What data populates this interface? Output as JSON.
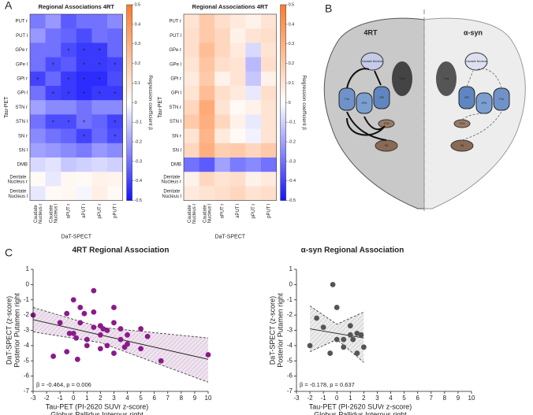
{
  "panels": [
    "A",
    "B",
    "C"
  ],
  "diagram": {
    "left_title": "4RT",
    "right_title": "α-syn",
    "structures": [
      "Caudate Nucleus",
      "Put",
      "GPe",
      "GPi",
      "STN",
      "SN",
      "Thal"
    ]
  },
  "chart_data": [
    {
      "type": "heatmap",
      "title": "Regional Associations 4RT",
      "xlabel": "DaT-SPECT",
      "ylabel": "Tau-PET",
      "colorbar_label": "Regression coefficient β",
      "x_categories": [
        "Caudate Nucleus r",
        "Caudate Nucleus l",
        "aPUT r",
        "aPUT l",
        "pPUT r",
        "pPUT l"
      ],
      "y_categories": [
        "PUT r",
        "PUT l",
        "GPe r",
        "GPe l",
        "GPi r",
        "GPi l",
        "STN r",
        "STN l",
        "SN r",
        "SN l",
        "DMB",
        "Dentate Nucleus r",
        "Dentate Nucleus l"
      ],
      "values": [
        [
          -0.28,
          -0.22,
          -0.35,
          -0.3,
          -0.3,
          -0.25
        ],
        [
          -0.22,
          -0.3,
          -0.33,
          -0.38,
          -0.3,
          -0.32
        ],
        [
          -0.3,
          -0.3,
          -0.38,
          -0.42,
          -0.42,
          -0.32
        ],
        [
          -0.3,
          -0.38,
          -0.35,
          -0.42,
          -0.42,
          -0.4
        ],
        [
          -0.4,
          -0.32,
          -0.42,
          -0.45,
          -0.45,
          -0.38
        ],
        [
          -0.3,
          -0.4,
          -0.42,
          -0.45,
          -0.42,
          -0.42
        ],
        [
          -0.2,
          -0.25,
          -0.25,
          -0.3,
          -0.25,
          -0.25
        ],
        [
          -0.3,
          -0.38,
          -0.38,
          -0.3,
          -0.33,
          -0.4
        ],
        [
          -0.25,
          -0.3,
          -0.33,
          -0.4,
          -0.32,
          -0.38
        ],
        [
          -0.2,
          -0.22,
          -0.25,
          -0.28,
          -0.22,
          -0.25
        ],
        [
          -0.08,
          -0.06,
          -0.12,
          -0.1,
          -0.08,
          -0.1
        ],
        [
          0.02,
          -0.05,
          0.03,
          0.02,
          0.05,
          0.04
        ],
        [
          -0.05,
          0.02,
          0.03,
          -0.02,
          0.06,
          0.02
        ]
      ],
      "significance_label": "*",
      "significant": [
        [
          2,
          2
        ],
        [
          2,
          3
        ],
        [
          2,
          4
        ],
        [
          3,
          1
        ],
        [
          3,
          3
        ],
        [
          3,
          4
        ],
        [
          3,
          5
        ],
        [
          4,
          0
        ],
        [
          4,
          2
        ],
        [
          4,
          3
        ],
        [
          4,
          4
        ],
        [
          5,
          1
        ],
        [
          5,
          2
        ],
        [
          5,
          3
        ],
        [
          5,
          4
        ],
        [
          5,
          5
        ],
        [
          7,
          1
        ],
        [
          7,
          2
        ],
        [
          7,
          3
        ],
        [
          7,
          5
        ],
        [
          8,
          3
        ],
        [
          8,
          5
        ]
      ],
      "clim": [
        -0.5,
        0.5
      ],
      "cticks": [
        0.5,
        0.4,
        0.3,
        0.2,
        0.1,
        0,
        -0.1,
        -0.2,
        -0.3,
        -0.4,
        -0.5
      ],
      "colormap": [
        "#1414ff",
        "#ffffff",
        "#ff7a2a"
      ]
    },
    {
      "type": "heatmap",
      "title": "Regional Associations 4RT",
      "xlabel": "DaT-SPECT",
      "ylabel": "Tau-PET",
      "colorbar_label": "Regression coefficient β",
      "x_categories": [
        "Caudate Nucleus r",
        "Caudate Nucleus l",
        "aPUT r",
        "aPUT l",
        "pPUT r",
        "pPUT l"
      ],
      "y_categories": [
        "PUT r",
        "PUT l",
        "GPe r",
        "GPe l",
        "GPi r",
        "GPi l",
        "STN r",
        "STN l",
        "SN r",
        "SN l",
        "DMB",
        "Dentate Nucleus r",
        "Dentate Nucleus l"
      ],
      "values": [
        [
          0.1,
          0.2,
          0.12,
          0.08,
          0.05,
          0.1
        ],
        [
          0.12,
          0.2,
          0.15,
          0.05,
          0.1,
          0.12
        ],
        [
          0.12,
          0.25,
          0.15,
          0.08,
          -0.08,
          0.1
        ],
        [
          0.1,
          0.22,
          0.12,
          0.1,
          -0.15,
          0.12
        ],
        [
          0.08,
          0.2,
          0.05,
          0.1,
          -0.12,
          0.05
        ],
        [
          0.1,
          0.25,
          0.12,
          0.08,
          -0.05,
          0.12
        ],
        [
          0.15,
          0.32,
          0.1,
          0.02,
          0.05,
          0.1
        ],
        [
          0.2,
          0.3,
          0.15,
          0.05,
          -0.05,
          0.1
        ],
        [
          0.1,
          0.28,
          0.08,
          0.02,
          -0.03,
          0.1
        ],
        [
          0.15,
          0.3,
          0.18,
          0.2,
          0.15,
          0.2
        ],
        [
          -0.3,
          -0.35,
          -0.2,
          -0.28,
          -0.25,
          -0.3
        ],
        [
          0.05,
          0.15,
          0.1,
          0.12,
          0.05,
          0.08
        ],
        [
          0.08,
          0.1,
          0.12,
          0.15,
          0.1,
          0.12
        ]
      ],
      "clim": [
        -0.5,
        0.5
      ],
      "cticks": [
        0.5,
        0.4,
        0.3,
        0.2,
        0.1,
        0,
        -0.1,
        -0.2,
        -0.3,
        -0.4,
        -0.5
      ],
      "colormap": [
        "#1414ff",
        "#ffffff",
        "#ff7a2a"
      ]
    },
    {
      "type": "scatter",
      "title": "4RT Regional Association",
      "xlabel": [
        "Tau-PET (PI-2620 SUVr z-score)",
        "Globus Pallidus Internus right"
      ],
      "ylabel": [
        "DaT-SPECT (z-score)",
        "Posterior Putamen right"
      ],
      "annotation": "β = -0.464, p = 0.006",
      "color": "#8b1a8b",
      "band_color": "#f1e2f1",
      "x": [
        -3,
        -1.5,
        -1,
        -0.5,
        -0.3,
        -0.5,
        0,
        0,
        0.2,
        0.3,
        0.5,
        0.5,
        1,
        1,
        1.5,
        1.5,
        1.5,
        2,
        2,
        2,
        2.5,
        2.5,
        3,
        3,
        3,
        3.5,
        3.5,
        4,
        4,
        5,
        5,
        5.5,
        6.5,
        10,
        0.8,
        2.2,
        3.8
      ],
      "y": [
        -2,
        -4.7,
        -2.5,
        -1.9,
        -3.2,
        -4.4,
        -1,
        -3.2,
        -3.5,
        -4.9,
        -1.5,
        -2.5,
        -3.6,
        -4,
        -0.4,
        -2.8,
        -1.8,
        -3.3,
        -2.7,
        -4.2,
        -4,
        -3,
        -1.5,
        -2.5,
        -4.5,
        -3.6,
        -2.9,
        -3.9,
        -3.3,
        -2.9,
        -4.2,
        -3.4,
        -5,
        -4.6,
        -1.9,
        -2.9,
        -4.1
      ],
      "fit": {
        "x": [
          -3,
          10
        ],
        "y": [
          -2.3,
          -4.9
        ]
      },
      "ci": {
        "x": [
          -3,
          2,
          10
        ],
        "upper": [
          -1.5,
          -2.8,
          -3.5
        ],
        "lower": [
          -3.1,
          -3.8,
          -6.4
        ]
      },
      "xlim": [
        -3,
        10
      ],
      "xticks": [
        -3,
        -2,
        -1,
        0,
        1,
        2,
        3,
        4,
        5,
        6,
        7,
        8,
        9,
        10
      ],
      "ylim": [
        -7,
        1
      ],
      "yticks": [
        1,
        0,
        -1,
        -2,
        -3,
        -4,
        -5,
        -6,
        -7
      ]
    },
    {
      "type": "scatter",
      "title": "α-syn Regional Association",
      "xlabel": [
        "Tau-PET (PI-2620 SUVr z-score)",
        "Globus Pallidus Internus right"
      ],
      "ylabel": [
        "DaT-SPECT (z-score)",
        "Posterior Putamen right"
      ],
      "annotation": "β = -0.178, p = 0.637",
      "color": "#555555",
      "band_color": "#ececec",
      "x": [
        -2,
        -1.5,
        -1,
        -0.5,
        -0.3,
        0,
        0,
        0.5,
        0.5,
        1,
        1,
        1.5,
        1.5,
        1.8,
        2,
        1.2
      ],
      "y": [
        -4,
        -2.2,
        -2.8,
        -4.5,
        0,
        -1.5,
        -3.6,
        -4.1,
        -3.6,
        -3.3,
        -2.7,
        -3.2,
        -4.5,
        -3.3,
        -4.1,
        -3.6
      ],
      "fit": {
        "x": [
          -2,
          2
        ],
        "y": [
          -2.9,
          -3.5
        ]
      },
      "ci": {
        "x": [
          -2,
          0,
          2
        ],
        "upper": [
          -1.4,
          -2.6,
          -1.8
        ],
        "lower": [
          -4.4,
          -3.6,
          -5.1
        ]
      },
      "xlim": [
        -3,
        10
      ],
      "xticks": [
        -3,
        -2,
        -1,
        0,
        1,
        2,
        3,
        4,
        5,
        6,
        7,
        8,
        9,
        10
      ],
      "ylim": [
        -7,
        1
      ],
      "yticks": [
        1,
        0,
        -1,
        -2,
        -3,
        -4,
        -5,
        -6,
        -7
      ]
    }
  ]
}
